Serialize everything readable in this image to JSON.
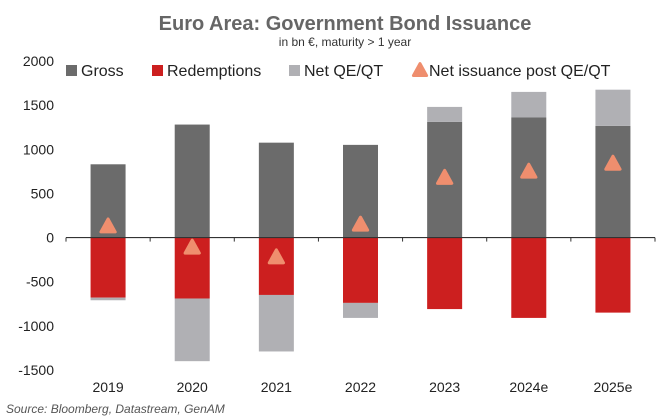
{
  "chart_data": {
    "type": "bar",
    "title": "Euro Area: Government Bond Issuance",
    "subtitle": "in bn €, maturity > 1 year",
    "source": "Source: Bloomberg, Datastream, GenAM",
    "categories": [
      "2019",
      "2020",
      "2021",
      "2022",
      "2023",
      "2024e",
      "2025e"
    ],
    "ylim": [
      -1500,
      2000
    ],
    "yticks": [
      "2000",
      "1500",
      "1000",
      "500",
      "0",
      "-500",
      "-1000",
      "-1500"
    ],
    "ytick_values": [
      2000,
      1500,
      1000,
      500,
      0,
      -500,
      -1000,
      -1500
    ],
    "grid": false,
    "legend_position": "top",
    "series": [
      {
        "name": "Gross",
        "kind": "bar",
        "color": "#6b6b6b",
        "values": [
          830,
          1280,
          1075,
          1050,
          1310,
          1360,
          1265
        ]
      },
      {
        "name": "Redemptions",
        "kind": "bar",
        "color": "#cc1f1f",
        "values": [
          -680,
          -690,
          -650,
          -740,
          -810,
          -910,
          -850
        ]
      },
      {
        "name": "Net QE/QT",
        "kind": "bar",
        "color": "#b0b0b4",
        "values": [
          -30,
          -710,
          -640,
          -170,
          170,
          290,
          410
        ]
      },
      {
        "name": "Net issuance post QE/QT",
        "kind": "marker",
        "color": "#ef8e6e",
        "values": [
          120,
          -120,
          -230,
          140,
          670,
          740,
          830
        ]
      }
    ]
  }
}
